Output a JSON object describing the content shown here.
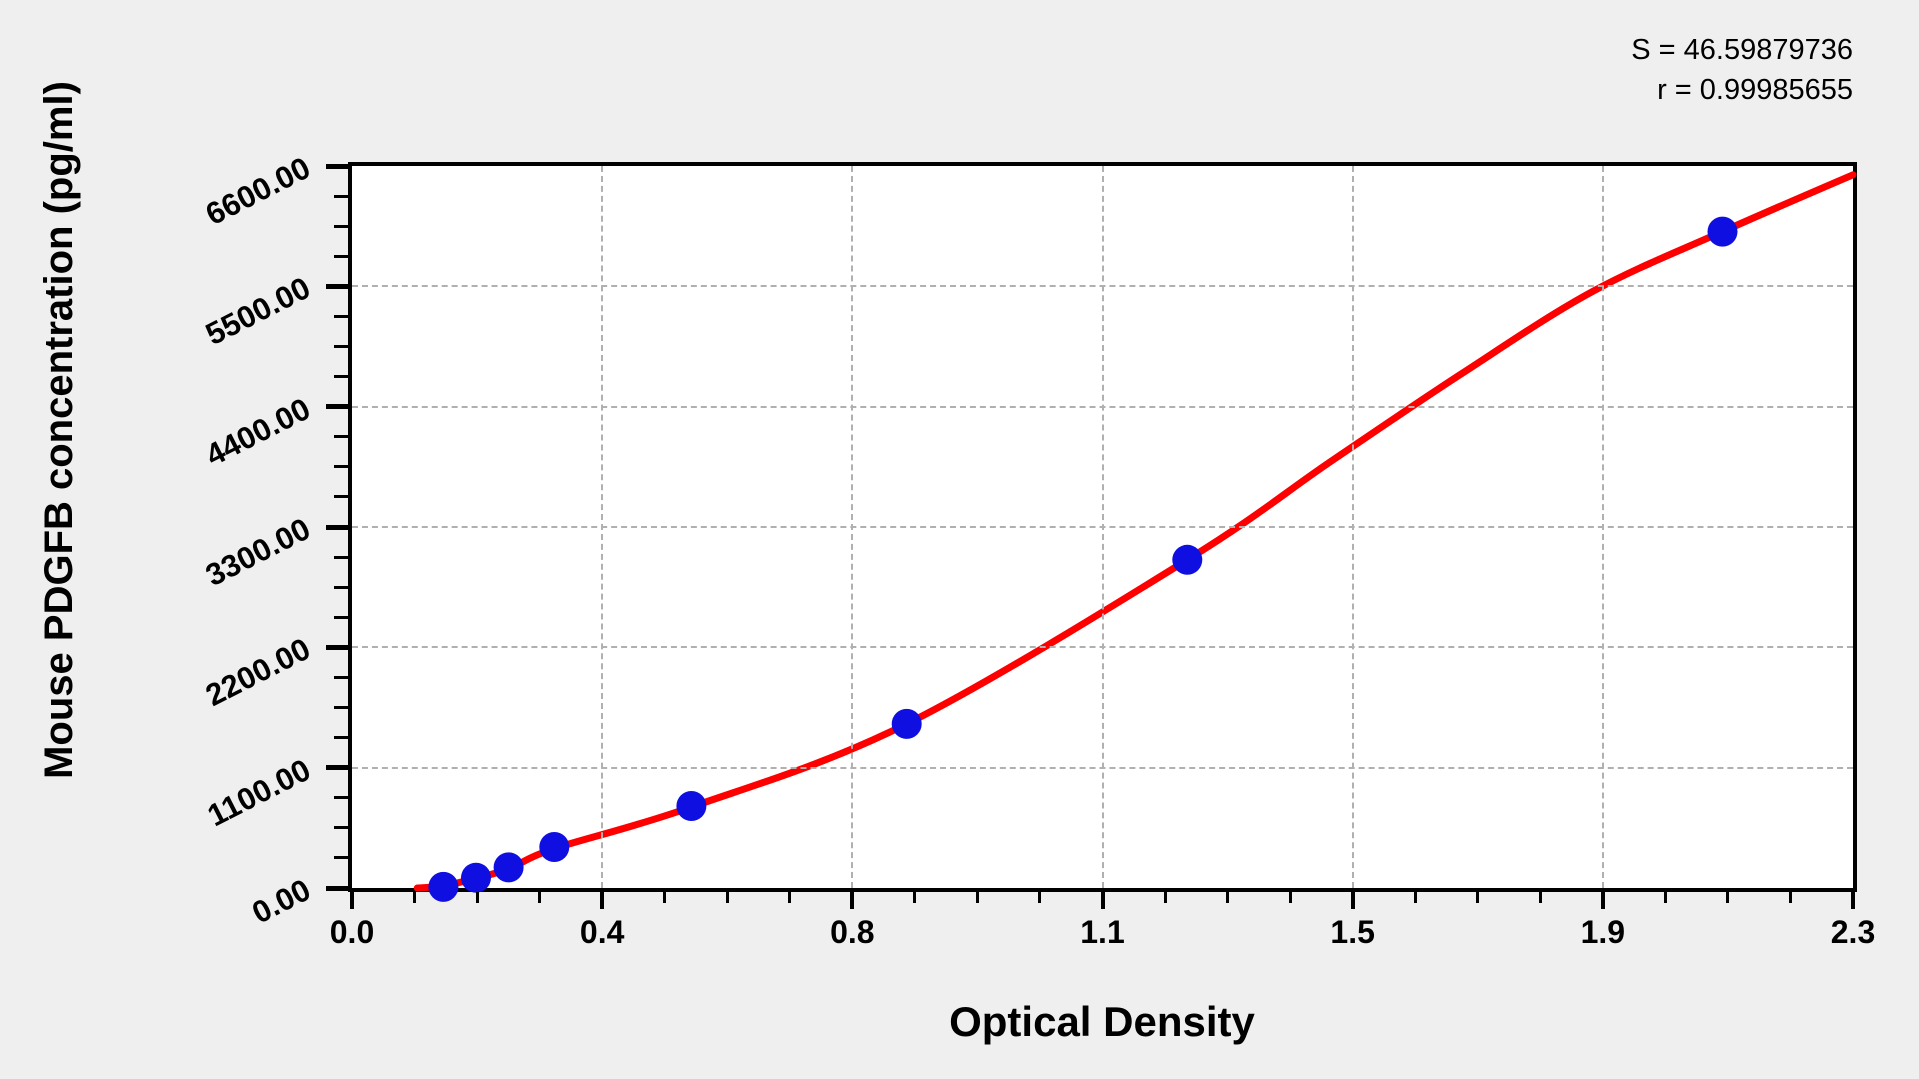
{
  "figure": {
    "background": "#efefef",
    "annotation": {
      "line1": "S = 46.59879736",
      "line2": "r = 0.99985655"
    }
  },
  "chart_data": {
    "type": "scatter",
    "title": "",
    "xlabel": "Optical Density",
    "ylabel": "Mouse PDGFB concentration (pg/ml)",
    "xlim": [
      0,
      2.3
    ],
    "ylim": [
      0,
      6600
    ],
    "x_tick_labels": [
      "0.0",
      "0.4",
      "0.8",
      "1.1",
      "1.5",
      "1.9",
      "2.3"
    ],
    "y_tick_labels": [
      "0.00",
      "1100.00",
      "2200.00",
      "3300.00",
      "4400.00",
      "5500.00",
      "6600.00"
    ],
    "grid": "dashed gray lines at major ticks",
    "minor_ticks_per_major": 4,
    "annotations": [
      "S = 46.59879736",
      "r = 0.99985655"
    ],
    "colors": {
      "curve": "#fe0000",
      "points": "#0f0fe1",
      "grid": "#b0b0b0"
    },
    "series": [
      {
        "name": "standard-points",
        "type": "scatter",
        "color": "#0f0fe1",
        "marker_radius_px": 15,
        "points": [
          [
            0.14,
            10
          ],
          [
            0.19,
            94
          ],
          [
            0.24,
            188
          ],
          [
            0.31,
            375
          ],
          [
            0.52,
            750
          ],
          [
            0.85,
            1500
          ],
          [
            1.28,
            3000
          ],
          [
            2.1,
            6000
          ]
        ]
      },
      {
        "name": "fitted-curve",
        "type": "line",
        "color": "#fe0000",
        "points": [
          [
            0.1,
            0
          ],
          [
            0.14,
            20
          ],
          [
            0.19,
            90
          ],
          [
            0.24,
            175
          ],
          [
            0.31,
            360
          ],
          [
            0.52,
            740
          ],
          [
            0.85,
            1500
          ],
          [
            1.28,
            3000
          ],
          [
            1.5,
            3900
          ],
          [
            1.7,
            4700
          ],
          [
            1.9,
            5450
          ],
          [
            2.1,
            6000
          ],
          [
            2.3,
            6520
          ]
        ]
      }
    ]
  }
}
